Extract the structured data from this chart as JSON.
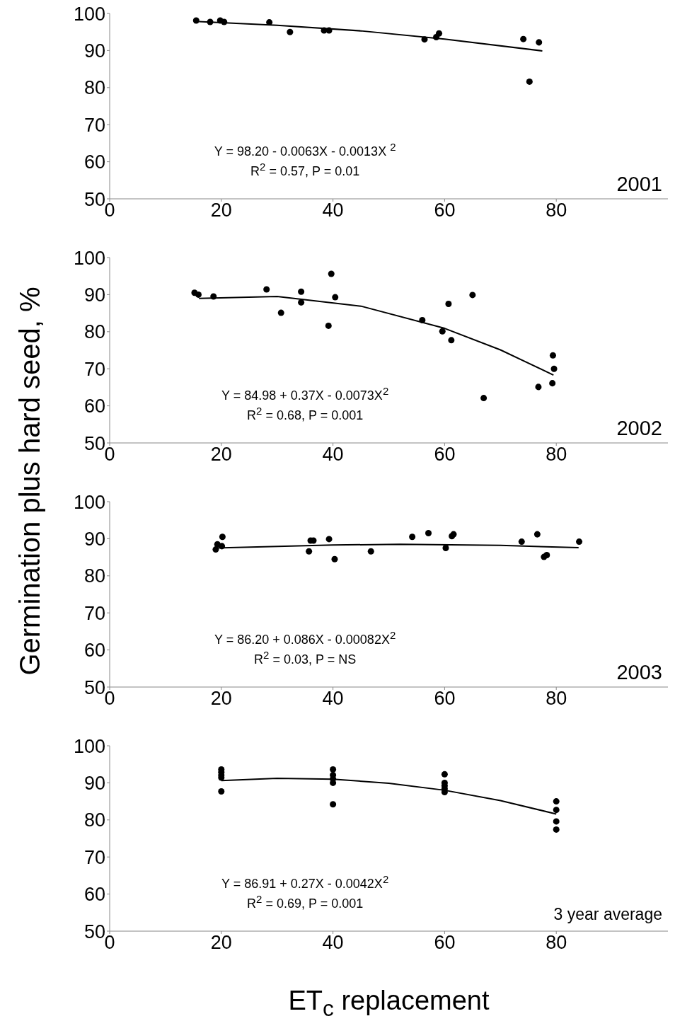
{
  "chart_data": [
    {
      "type": "scatter",
      "ylabel": "Germination plus hard seed, %",
      "xlim": [
        0,
        100
      ],
      "xticks": [
        0,
        20,
        40,
        60,
        80
      ],
      "ylim": [
        50,
        100
      ],
      "yticks": [
        50,
        60,
        70,
        80,
        90,
        100
      ],
      "annotations": [
        "Y = 98.20 - 0.0063X - 0.0013X $^{2}$",
        "R$^{2}$ = 0.57, P = 0.01",
        "2001"
      ],
      "series": [
        {
          "marker": "circle",
          "color": "#000000",
          "x": [
            15.5,
            18,
            19.8,
            20.5,
            28.6,
            32.3,
            38.4,
            39.3,
            56.4,
            58.5,
            59.0,
            74.1,
            76.9,
            75.2
          ],
          "values": [
            98.1,
            97.7,
            98.1,
            97.7,
            97.6,
            95.0,
            95.4,
            95.4,
            93.0,
            93.6,
            94.6,
            93.1,
            92.2,
            81.6
          ]
        },
        {
          "type": "line",
          "marker": "none",
          "line_style": "solid",
          "color": "#000000",
          "x": [
            16,
            30,
            45,
            60,
            77.5
          ],
          "values": [
            97.8,
            96.8,
            95.3,
            93.1,
            89.9
          ]
        }
      ]
    },
    {
      "type": "scatter",
      "xlim": [
        0,
        100
      ],
      "xticks": [
        0,
        20,
        40,
        60,
        80
      ],
      "ylim": [
        50,
        100
      ],
      "yticks": [
        50,
        60,
        70,
        80,
        90,
        100
      ],
      "annotations": [
        "Y = 84.98 + 0.37X - 0.0073X$^{2}$",
        "R$^{2}$ = 0.68, P = 0.001",
        "2002"
      ],
      "series": [
        {
          "marker": "circle",
          "color": "#000000",
          "x": [
            15.2,
            15.9,
            18.6,
            28.1,
            30.7,
            34.3,
            34.3,
            39.2,
            39.7,
            40.4,
            56.0,
            59.6,
            60.7,
            61.2,
            65.0,
            67.0,
            76.8,
            79.3,
            79.4,
            79.6
          ],
          "values": [
            90.5,
            90.0,
            89.5,
            91.4,
            85.1,
            90.8,
            87.9,
            81.6,
            95.6,
            89.3,
            83.1,
            80.1,
            87.5,
            77.7,
            89.9,
            62.1,
            65.1,
            66.1,
            73.6,
            70.0
          ]
        },
        {
          "type": "line",
          "marker": "none",
          "line_style": "solid",
          "color": "#000000",
          "x": [
            16,
            30,
            45,
            60,
            70,
            79.5
          ],
          "values": [
            89.0,
            89.5,
            86.9,
            80.9,
            75.1,
            68.3
          ]
        }
      ]
    },
    {
      "type": "scatter",
      "xlim": [
        0,
        100
      ],
      "xticks": [
        0,
        20,
        40,
        60,
        80
      ],
      "ylim": [
        50,
        100
      ],
      "yticks": [
        50,
        60,
        70,
        80,
        90,
        100
      ],
      "annotations": [
        "Y = 86.20 + 0.086X - 0.00082X$^{2}$",
        "R$^{2}$ = 0.03, P = NS",
        "2003"
      ],
      "series": [
        {
          "marker": "circle",
          "color": "#000000",
          "x": [
            19.0,
            19.3,
            20.1,
            20.2,
            35.7,
            36.0,
            36.5,
            39.3,
            40.3,
            46.8,
            54.2,
            57.1,
            60.2,
            61.3,
            61.6,
            73.8,
            76.6,
            77.8,
            78.3,
            84.1
          ],
          "values": [
            87.1,
            88.5,
            88.0,
            90.5,
            86.6,
            89.5,
            89.5,
            89.9,
            84.5,
            86.6,
            90.5,
            91.5,
            87.5,
            90.7,
            91.2,
            89.2,
            91.2,
            85.1,
            85.6,
            89.2
          ]
        },
        {
          "type": "line",
          "marker": "none",
          "line_style": "solid",
          "color": "#000000",
          "x": [
            19,
            40,
            52,
            70,
            84
          ],
          "values": [
            87.5,
            88.3,
            88.5,
            88.2,
            87.6
          ]
        }
      ]
    },
    {
      "type": "scatter",
      "xlabel": "ET$_{c}$ replacement",
      "xlim": [
        0,
        100
      ],
      "xticks": [
        0,
        20,
        40,
        60,
        80
      ],
      "ylim": [
        50,
        100
      ],
      "yticks": [
        50,
        60,
        70,
        80,
        90,
        100
      ],
      "annotations": [
        "Y = 86.91 + 0.27X - 0.0042X$^{2}$",
        "R$^{2}$ = 0.69, P = 0.001",
        "3 year average"
      ],
      "series": [
        {
          "marker": "circle",
          "color": "#000000",
          "x": [
            20,
            20,
            20,
            20,
            20,
            40,
            40,
            40,
            40,
            40,
            60,
            60,
            60,
            60,
            60,
            80,
            80,
            80,
            80
          ],
          "values": [
            93.6,
            92.9,
            92.1,
            91.4,
            87.7,
            93.6,
            92.1,
            91.1,
            90.0,
            84.2,
            92.3,
            90.0,
            89.2,
            88.4,
            87.5,
            85.0,
            82.7,
            79.6,
            77.4
          ]
        },
        {
          "type": "line",
          "marker": "none",
          "line_style": "solid",
          "color": "#000000",
          "x": [
            20,
            30,
            40,
            50,
            60,
            70,
            80
          ],
          "values": [
            90.6,
            91.2,
            91.0,
            89.9,
            88.0,
            85.2,
            81.6
          ]
        }
      ]
    }
  ]
}
